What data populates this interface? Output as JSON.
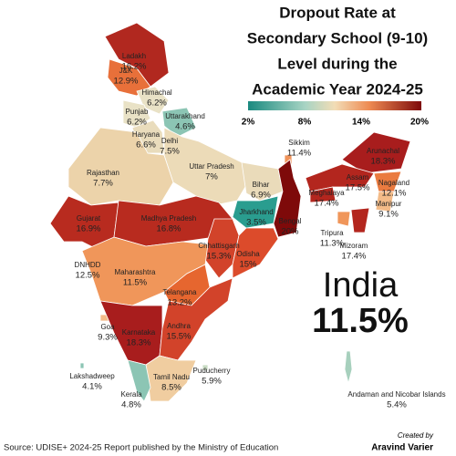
{
  "title_lines": [
    "Dropout Rate at",
    "Secondary School (9-10)",
    "Level during the",
    "Academic Year 2024-25"
  ],
  "legend_ticks": [
    "2%",
    "8%",
    "14%",
    "20%"
  ],
  "national": {
    "name": "India",
    "value": "11.5%"
  },
  "regions": [
    {
      "name": "Ladakh",
      "value": "16.2%",
      "color": "#b1281f"
    },
    {
      "name": "J&K",
      "value": "12.9%",
      "color": "#e8703a"
    },
    {
      "name": "Himachal",
      "value": "6.2%",
      "color": "#e9e2c6"
    },
    {
      "name": "Punjab",
      "value": "6.2%",
      "color": "#e9e2c6"
    },
    {
      "name": "Uttarakhand",
      "value": "4.6%",
      "color": "#8cc5b4"
    },
    {
      "name": "Haryana",
      "value": "6.6%",
      "color": "#e9dcbc"
    },
    {
      "name": "Delhi",
      "value": "7.5%",
      "color": "#ecd6ae"
    },
    {
      "name": "Rajasthan",
      "value": "7.7%",
      "color": "#ecd3aa"
    },
    {
      "name": "Uttar Pradesh",
      "value": "7%",
      "color": "#ecdbb8"
    },
    {
      "name": "Bihar",
      "value": "6.9%",
      "color": "#eadbba"
    },
    {
      "name": "Sikkim",
      "value": "11.4%",
      "color": "#f0935a"
    },
    {
      "name": "Arunachal",
      "value": "18.3%",
      "color": "#a81d1d"
    },
    {
      "name": "Assam",
      "value": "17.5%",
      "color": "#b3261e"
    },
    {
      "name": "Meghalaya",
      "value": "17.4%",
      "color": "#b3261e"
    },
    {
      "name": "Nagaland",
      "value": "12.1%",
      "color": "#ea7b40"
    },
    {
      "name": "Manipur",
      "value": "9.1%",
      "color": "#f3bb88"
    },
    {
      "name": "Tripura",
      "value": "11.3%",
      "color": "#f0965a"
    },
    {
      "name": "Mizoram",
      "value": "17.4%",
      "color": "#b3261e"
    },
    {
      "name": "Jharkhand",
      "value": "3.5%",
      "color": "#2a9d8f"
    },
    {
      "name": "Bengal",
      "value": "20%",
      "color": "#7e0a0a"
    },
    {
      "name": "Gujarat",
      "value": "16.9%",
      "color": "#b82b1f"
    },
    {
      "name": "Madhya Pradesh",
      "value": "16.8%",
      "color": "#b82b1f"
    },
    {
      "name": "Chhattisgarh",
      "value": "15.3%",
      "color": "#d2432a"
    },
    {
      "name": "Odisha",
      "value": "15%",
      "color": "#dc4b2b"
    },
    {
      "name": "DNHDD",
      "value": "12.5%",
      "color": "#e8703a"
    },
    {
      "name": "Maharashtra",
      "value": "11.5%",
      "color": "#f0965a"
    },
    {
      "name": "Telangana",
      "value": "13.2%",
      "color": "#e6662f"
    },
    {
      "name": "Goa",
      "value": "9.3%",
      "color": "#f3bb88"
    },
    {
      "name": "Karnataka",
      "value": "18.3%",
      "color": "#a81d1d"
    },
    {
      "name": "Andhra",
      "value": "15.5%",
      "color": "#d2432a"
    },
    {
      "name": "Lakshadweep",
      "value": "4.1%",
      "color": "#8cc5b4"
    },
    {
      "name": "Tamil Nadu",
      "value": "8.5%",
      "color": "#f0cda0"
    },
    {
      "name": "Puducherry",
      "value": "5.9%",
      "color": "#c9dcc4"
    },
    {
      "name": "Kerala",
      "value": "4.8%",
      "color": "#8cc5b4"
    },
    {
      "name": "Andaman and Nicobar Islands",
      "value": "5.4%",
      "color": "#a7d0bd"
    }
  ],
  "credit_label": "Created by",
  "credit_name": "Aravind Varier",
  "source": "Source: UDISE+ 2024-25 Report published by the Ministry of Education"
}
